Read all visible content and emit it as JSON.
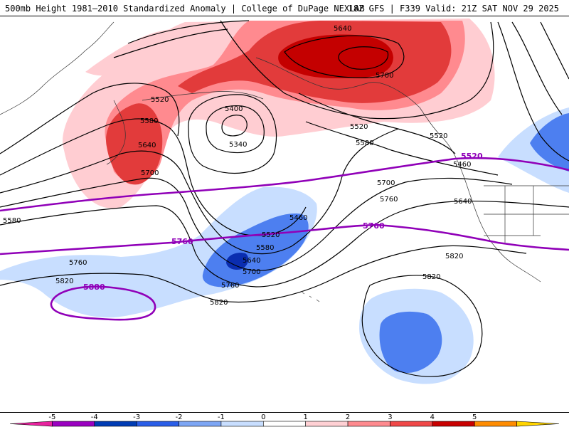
{
  "header": {
    "title_left": "500mb Height 1981–2010 Standardized Anomaly | College of DuPage NEXLAB",
    "title_right": "18Z GFS | F339 Valid: 21Z SAT NOV 29 2025"
  },
  "contours": {
    "l5340": "5340",
    "l5400": "5400",
    "l5460a": "5460",
    "l5460b": "5460",
    "l5520a": "5520",
    "l5520b": "5520",
    "l5520c": "5520",
    "l5520d": "5520",
    "l5580a": "5580",
    "l5580b": "5580",
    "l5580c": "5580",
    "l5640a": "5640",
    "l5640b": "5640",
    "l5640c": "5640",
    "l5640d": "5640",
    "l5700a": "5700",
    "l5700b": "5700",
    "l5700c": "5700",
    "l5700d": "5700",
    "l5760a": "5760",
    "l5760b": "5760",
    "l5760c": "5760",
    "l5820a": "5820",
    "l5820b": "5820",
    "l5820c": "5820",
    "l5820d": "5820",
    "p5520": "5520",
    "p5760a": "5760",
    "p5760b": "5760",
    "p5880": "5880"
  },
  "colorbar": {
    "ticks": [
      "-5",
      "-4",
      "-3",
      "-2",
      "-1",
      "0",
      "1",
      "2",
      "3",
      "4",
      "5"
    ],
    "colors": [
      "#e8229e",
      "#9a00c0",
      "#003cb4",
      "#2a5ee8",
      "#7da6f5",
      "#c8deff",
      "#ffffff",
      "#ffd0d4",
      "#ff8a8f",
      "#f04848",
      "#c80000",
      "#ff8c00",
      "#ffd400"
    ]
  }
}
